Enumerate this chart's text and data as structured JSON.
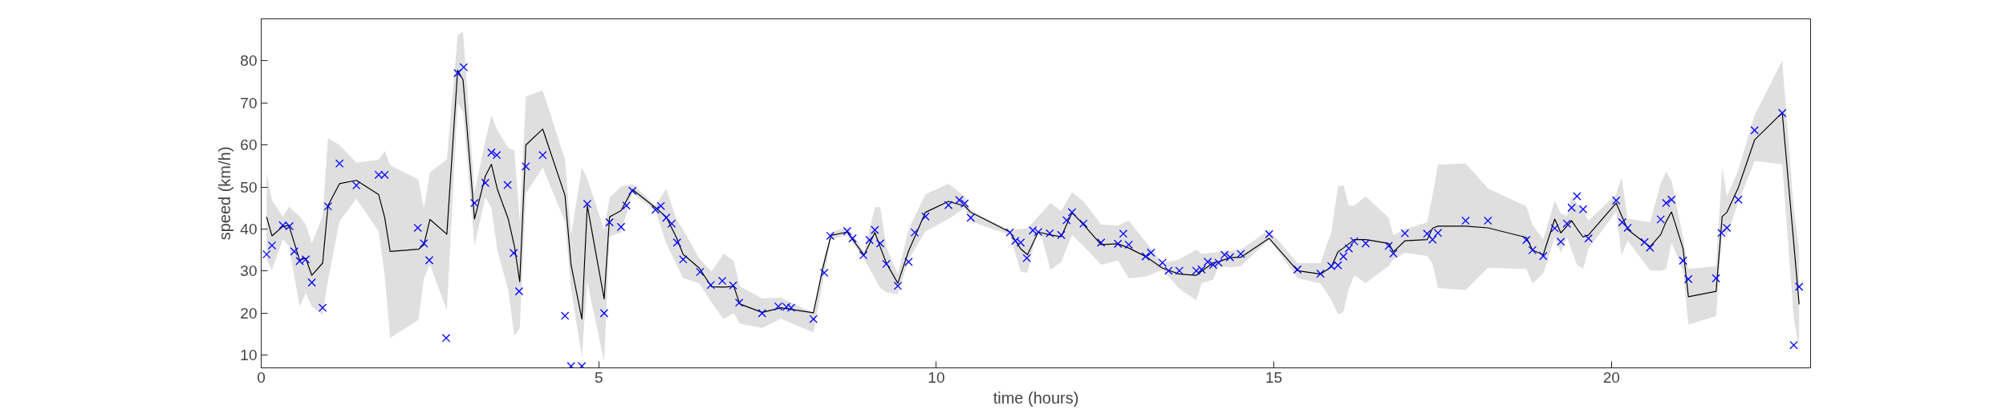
{
  "chart_data": {
    "type": "line",
    "xlabel": "time (hours)",
    "ylabel": "speed (km/h)",
    "xlim": [
      0,
      22.95
    ],
    "ylim": [
      7,
      90
    ],
    "xticks": [
      0,
      5,
      10,
      15,
      20
    ],
    "yticks": [
      10,
      20,
      30,
      40,
      50,
      60,
      70,
      80
    ],
    "series": [
      {
        "color": "#000000",
        "line_style": "solid",
        "x": [
          0.08,
          0.16,
          0.32,
          0.41,
          0.57,
          0.66,
          0.75,
          0.91,
          0.99,
          1.16,
          1.41,
          1.74,
          1.83,
          1.91,
          2.33,
          2.41,
          2.5,
          2.75,
          2.91,
          2.99,
          3.16,
          3.32,
          3.41,
          3.5,
          3.66,
          3.75,
          3.83,
          3.92,
          4.17,
          4.5,
          4.59,
          4.75,
          4.83,
          5.08,
          5.16,
          5.33,
          5.5,
          5.84,
          6.0,
          6.15,
          6.25,
          6.49,
          6.67,
          6.85,
          7.0,
          7.09,
          7.42,
          7.7,
          8.18,
          8.32,
          8.44,
          8.68,
          8.93,
          9.09,
          9.17,
          9.26,
          9.43,
          9.59,
          9.84,
          10.18,
          10.42,
          10.51,
          11.09,
          11.25,
          11.35,
          11.51,
          11.69,
          11.85,
          12.01,
          12.18,
          12.44,
          12.69,
          12.85,
          13.1,
          13.35,
          13.6,
          13.85,
          13.93,
          14.1,
          14.18,
          14.35,
          14.51,
          14.93,
          15.35,
          15.69,
          15.85,
          15.95,
          16.03,
          16.11,
          16.19,
          16.36,
          16.7,
          16.77,
          16.94,
          17.27,
          17.35,
          17.43,
          17.84,
          18.17,
          18.74,
          18.83,
          18.99,
          19.16,
          19.25,
          19.34,
          19.41,
          19.49,
          19.58,
          19.66,
          20.07,
          20.15,
          20.24,
          20.57,
          20.73,
          20.81,
          20.89,
          21.06,
          21.14,
          21.55,
          21.64,
          21.71,
          21.88,
          22.12,
          22.53,
          22.7,
          22.78
        ],
        "values": [
          42.9,
          38.4,
          40.6,
          40.9,
          32.6,
          33.1,
          29.0,
          31.9,
          45.6,
          50.8,
          51.6,
          48.2,
          42.7,
          34.7,
          35.2,
          36.3,
          42.3,
          38.8,
          77.8,
          75.5,
          42.4,
          52.6,
          55.4,
          49.4,
          42.4,
          36.0,
          27.5,
          60.0,
          63.8,
          48.0,
          31.5,
          18.6,
          45.6,
          23.4,
          42.9,
          44.4,
          49.4,
          45.1,
          42.9,
          38.0,
          34.0,
          30.7,
          26.3,
          26.2,
          26.4,
          22.2,
          20.2,
          21.3,
          20.1,
          30.8,
          38.5,
          39.3,
          33.8,
          39.2,
          35.7,
          31.9,
          27.1,
          34.8,
          44.0,
          46.6,
          45.5,
          44.0,
          39.3,
          35.3,
          33.9,
          39.3,
          38.6,
          38.2,
          43.9,
          41.1,
          36.3,
          36.5,
          35.5,
          33.5,
          30.7,
          29.3,
          29.0,
          30.0,
          32.0,
          32.2,
          33.2,
          33.3,
          37.8,
          30.1,
          29.3,
          31.0,
          34.6,
          35.5,
          36.5,
          37.5,
          37.5,
          36.6,
          34.6,
          37.2,
          37.5,
          40.2,
          40.7,
          40.7,
          40.3,
          38.0,
          35.0,
          33.9,
          42.4,
          39.1,
          40.7,
          42.0,
          40.1,
          38.1,
          38.6,
          46.2,
          43.2,
          39.9,
          35.8,
          38.7,
          41.8,
          44.1,
          35.4,
          23.9,
          25.2,
          43.0,
          44.0,
          49.9,
          61.2,
          67.7,
          36.7,
          22.1
        ],
        "lower": [
          32.8,
          30.3,
          37.6,
          36.0,
          21.6,
          24.8,
          21.6,
          19.7,
          27.7,
          41.8,
          47.2,
          39.5,
          29.0,
          14.1,
          18.4,
          28.3,
          31.5,
          20.7,
          69.9,
          68.0,
          36.0,
          47.5,
          45.0,
          34.7,
          25.5,
          14.6,
          16.5,
          48.5,
          54.6,
          41.8,
          25.8,
          9.5,
          27.4,
          8.5,
          38.2,
          39.2,
          48.5,
          44.3,
          36.6,
          31.6,
          28.3,
          27.1,
          22.6,
          18.6,
          20.0,
          17.5,
          16.5,
          18.7,
          15.4,
          27.7,
          37.6,
          38.6,
          32.8,
          28.3,
          26.0,
          25.0,
          24.5,
          32.8,
          39.5,
          42.4,
          45.0,
          41.8,
          38.6,
          29.9,
          29.6,
          41.1,
          30.3,
          32.2,
          38.6,
          36.0,
          31.5,
          32.5,
          28.3,
          28.7,
          30.3,
          25.8,
          23.1,
          27.1,
          28.0,
          31.2,
          30.9,
          31.2,
          37.6,
          28.3,
          27.1,
          23.2,
          19.7,
          20.3,
          25.8,
          29.0,
          27.2,
          31.2,
          32.8,
          34.4,
          33.6,
          31.8,
          26.0,
          25.5,
          30.8,
          30.5,
          27.1,
          29.4,
          38.0,
          34.4,
          38.0,
          35.0,
          31.5,
          30.5,
          35.4,
          44.1,
          33.8,
          37.3,
          30.2,
          30.1,
          30.5,
          36.7,
          30.2,
          17.3,
          19.3,
          39.3,
          38.6,
          46.4,
          56.2,
          55.4,
          18.9,
          11.8
        ],
        "upper": [
          53.4,
          46.9,
          43.0,
          45.3,
          43.0,
          41.1,
          36.6,
          43.0,
          61.6,
          60.0,
          55.8,
          56.5,
          58.6,
          55.2,
          51.8,
          44.9,
          53.5,
          56.6,
          86.0,
          87.0,
          48.8,
          61.0,
          67.0,
          63.5,
          59.3,
          58.7,
          41.8,
          71.5,
          73.0,
          56.5,
          38.6,
          54.6,
          52.0,
          39.8,
          47.5,
          50.1,
          50.7,
          45.6,
          49.6,
          42.4,
          39.8,
          33.0,
          29.9,
          34.2,
          32.5,
          26.4,
          23.5,
          23.7,
          20.0,
          32.0,
          39.2,
          40.5,
          34.7,
          45.2,
          45.2,
          35.7,
          29.3,
          40.0,
          48.3,
          50.8,
          47.8,
          44.3,
          39.8,
          40.0,
          40.2,
          43.0,
          46.2,
          44.3,
          48.8,
          46.6,
          41.1,
          40.8,
          42.0,
          37.0,
          31.9,
          32.8,
          35.1,
          34.1,
          34.4,
          34.5,
          34.7,
          35.1,
          39.8,
          31.9,
          31.9,
          39.2,
          50.1,
          50.4,
          45.6,
          45.6,
          47.8,
          42.7,
          38.6,
          40.0,
          41.6,
          48.0,
          55.3,
          55.6,
          49.7,
          45.4,
          41.0,
          37.6,
          46.8,
          43.8,
          43.1,
          47.8,
          46.0,
          44.4,
          42.0,
          48.3,
          52.2,
          42.5,
          41.6,
          50.9,
          53.7,
          51.5,
          38.0,
          30.5,
          31.2,
          54.4,
          47.8,
          54.1,
          67.1,
          80.1,
          45.0,
          35.4
        ]
      },
      {
        "type": "scatter",
        "color": "#0000ff",
        "marker": "cross",
        "x": [
          0.08,
          0.16,
          0.32,
          0.42,
          0.49,
          0.57,
          0.66,
          0.75,
          0.91,
          0.99,
          1.16,
          1.41,
          1.74,
          1.83,
          2.32,
          2.41,
          2.49,
          2.74,
          2.91,
          3.0,
          3.16,
          3.32,
          3.41,
          3.49,
          3.65,
          3.74,
          3.82,
          3.92,
          4.17,
          4.5,
          4.59,
          4.75,
          4.83,
          5.08,
          5.16,
          5.33,
          5.41,
          5.5,
          5.84,
          5.92,
          6.0,
          6.08,
          6.16,
          6.25,
          6.5,
          6.66,
          6.83,
          6.99,
          7.08,
          7.42,
          7.66,
          7.78,
          7.85,
          8.18,
          8.34,
          8.43,
          8.68,
          8.76,
          8.92,
          9.01,
          9.09,
          9.17,
          9.26,
          9.43,
          9.59,
          9.68,
          9.84,
          10.18,
          10.34,
          10.42,
          10.51,
          11.09,
          11.17,
          11.25,
          11.34,
          11.43,
          11.51,
          11.68,
          11.85,
          11.93,
          12.01,
          12.18,
          12.44,
          12.69,
          12.77,
          12.85,
          13.1,
          13.18,
          13.35,
          13.44,
          13.6,
          13.85,
          13.93,
          14.02,
          14.1,
          14.18,
          14.27,
          14.35,
          14.51,
          14.93,
          15.35,
          15.69,
          15.85,
          15.95,
          16.03,
          16.11,
          16.19,
          16.36,
          16.7,
          16.77,
          16.94,
          17.27,
          17.35,
          17.43,
          17.84,
          18.17,
          18.74,
          18.83,
          18.99,
          19.16,
          19.25,
          19.34,
          19.41,
          19.49,
          19.58,
          19.66,
          20.07,
          20.16,
          20.24,
          20.49,
          20.57,
          20.73,
          20.81,
          20.89,
          21.06,
          21.14,
          21.55,
          21.63,
          21.71,
          21.88,
          22.12,
          22.53,
          22.7,
          22.78
        ],
        "values": [
          34.0,
          36.1,
          40.9,
          40.7,
          34.7,
          32.4,
          32.8,
          27.3,
          21.3,
          45.4,
          55.6,
          50.4,
          52.9,
          52.9,
          40.3,
          36.6,
          32.6,
          14.1,
          77.1,
          78.5,
          46.2,
          51.0,
          58.2,
          57.6,
          50.5,
          34.3,
          25.2,
          54.9,
          57.6,
          19.4,
          7.4,
          7.4,
          46.0,
          20.0,
          41.6,
          40.5,
          45.6,
          49.1,
          44.6,
          45.5,
          42.7,
          41.3,
          36.8,
          32.8,
          29.8,
          26.7,
          27.7,
          26.6,
          22.5,
          20.0,
          21.6,
          21.5,
          21.3,
          18.6,
          29.6,
          38.4,
          39.5,
          37.8,
          33.8,
          37.4,
          39.8,
          36.6,
          31.7,
          26.5,
          32.2,
          39.2,
          43.0,
          45.7,
          46.9,
          46.1,
          42.7,
          39.2,
          37.2,
          36.8,
          33.1,
          39.7,
          39.3,
          39.0,
          38.6,
          42.1,
          44.0,
          41.3,
          36.8,
          36.5,
          38.9,
          36.3,
          33.5,
          34.4,
          32.0,
          30.1,
          30.1,
          30.1,
          30.4,
          32.2,
          31.5,
          32.0,
          33.9,
          33.3,
          34.1,
          38.8,
          30.4,
          29.4,
          31.2,
          31.4,
          33.5,
          35.4,
          37.1,
          36.6,
          36.0,
          34.2,
          39.0,
          38.9,
          37.5,
          39.1,
          42.0,
          42.0,
          37.4,
          35.0,
          33.6,
          40.2,
          37.0,
          41.3,
          45.1,
          47.8,
          44.7,
          37.8,
          46.8,
          41.6,
          40.3,
          36.9,
          35.6,
          42.3,
          46.2,
          47.0,
          32.5,
          28.1,
          28.3,
          39.1,
          40.3,
          47.0,
          63.5,
          67.6,
          12.4,
          26.3
        ]
      }
    ]
  }
}
